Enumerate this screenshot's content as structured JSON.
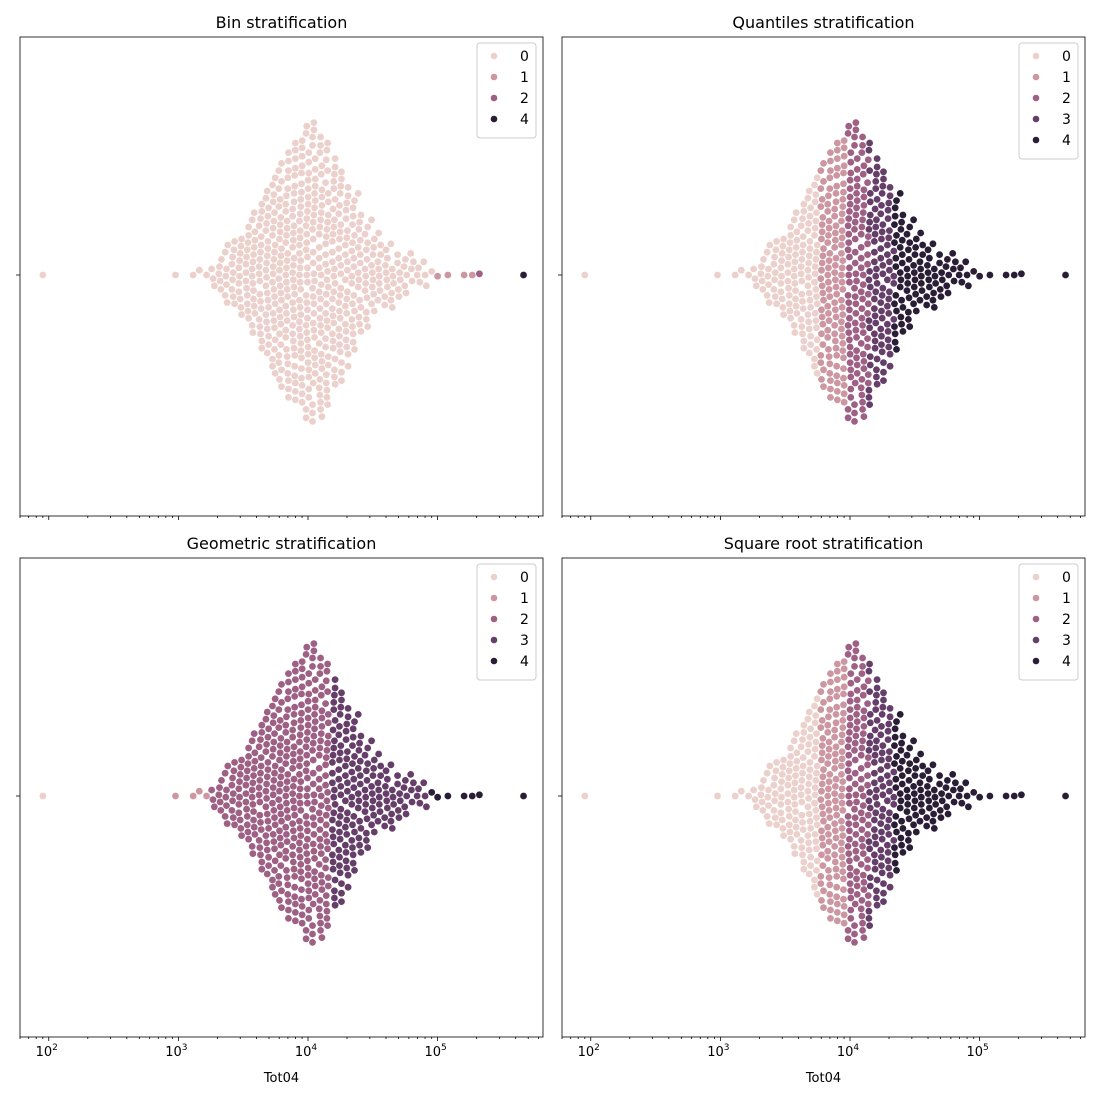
{
  "palette": {
    "0": "#ebd0cb",
    "1": "#cc97a2",
    "2": "#9e6084",
    "3": "#653e69",
    "4": "#2a1d36"
  },
  "chart_data": [
    {
      "type": "scatter",
      "variant": "swarm",
      "title": "Bin stratification",
      "xlabel": "",
      "x_scale": "log",
      "xlim": [
        60,
        650000
      ],
      "x_ticks_labeled": false,
      "legend": {
        "position": "upper-right",
        "entries": [
          "0",
          "1",
          "2",
          "4"
        ]
      },
      "class_thresholds": [
        100000,
        200000,
        400000
      ],
      "class_labels": [
        0,
        1,
        2,
        4
      ]
    },
    {
      "type": "scatter",
      "variant": "swarm",
      "title": "Quantiles stratification",
      "xlabel": "",
      "x_scale": "log",
      "xlim": [
        60,
        650000
      ],
      "x_ticks_labeled": false,
      "legend": {
        "position": "upper-right",
        "entries": [
          "0",
          "1",
          "2",
          "3",
          "4"
        ]
      },
      "class_thresholds": [
        5800,
        9200,
        14000,
        22000
      ],
      "class_labels": [
        0,
        1,
        2,
        3,
        4
      ]
    },
    {
      "type": "scatter",
      "variant": "swarm",
      "title": "Geometric stratification",
      "xlabel": "Tot04",
      "x_scale": "log",
      "xlim": [
        60,
        650000
      ],
      "x_ticks_labeled": true,
      "legend": {
        "position": "upper-right",
        "entries": [
          "0",
          "1",
          "2",
          "3",
          "4"
        ]
      },
      "class_thresholds": [
        900,
        1700,
        15000,
        90000
      ],
      "class_labels": [
        0,
        1,
        2,
        3,
        4
      ]
    },
    {
      "type": "scatter",
      "variant": "swarm",
      "title": "Square root stratification",
      "xlabel": "Tot04",
      "x_scale": "log",
      "xlim": [
        60,
        650000
      ],
      "x_ticks_labeled": true,
      "legend": {
        "position": "upper-right",
        "entries": [
          "0",
          "1",
          "2",
          "3",
          "4"
        ]
      },
      "class_thresholds": [
        5800,
        9200,
        14000,
        22000
      ],
      "class_labels": [
        0,
        1,
        2,
        3,
        4
      ]
    }
  ],
  "x_tick_labels": [
    {
      "value": 100,
      "base": "10",
      "exp": "2"
    },
    {
      "value": 1000,
      "base": "10",
      "exp": "3"
    },
    {
      "value": 10000,
      "base": "10",
      "exp": "4"
    },
    {
      "value": 100000,
      "base": "10",
      "exp": "5"
    }
  ],
  "distribution": {
    "tail_points": [
      90,
      950,
      1300,
      1450,
      1650,
      90000,
      100000,
      120000,
      160000,
      185000,
      210000,
      460000
    ],
    "column_centers": [
      1850,
      2100,
      2350,
      2650,
      3000,
      3400,
      3800,
      4300,
      4850,
      5450,
      6100,
      6900,
      7800,
      8800,
      9900,
      11100,
      12500,
      14000,
      15800,
      17700,
      19900,
      22300,
      25000,
      28200,
      31700,
      35500,
      40000,
      44700,
      50300,
      56400,
      63500,
      71200,
      80000
    ],
    "column_counts": [
      3,
      5,
      7,
      9,
      11,
      13,
      16,
      19,
      22,
      25,
      28,
      31,
      33,
      34,
      35,
      34,
      33,
      31,
      28,
      25,
      22,
      19,
      16,
      13,
      11,
      9,
      8,
      7,
      6,
      5,
      4,
      3,
      3
    ]
  }
}
